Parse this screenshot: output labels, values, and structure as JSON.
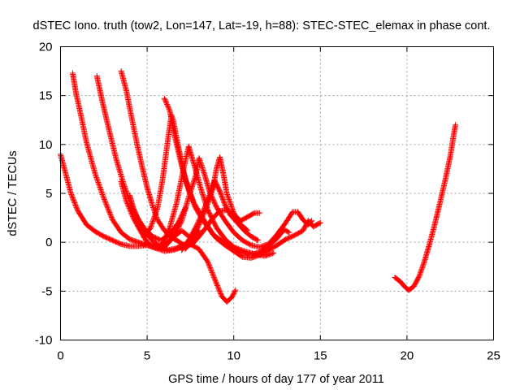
{
  "chart_data": {
    "type": "scatter",
    "title": "dSTEC Iono. truth (tow2, Lon=147, Lat=-19, h=88): STEC-STEC_elemax in phase cont.",
    "xlabel": "GPS time / hours of day 177 of year 2011",
    "ylabel": "dSTEC  / TECUs",
    "xlim": [
      0,
      25
    ],
    "ylim": [
      -10,
      20
    ],
    "xticks": [
      0,
      5,
      10,
      15,
      20,
      25
    ],
    "yticks": [
      -10,
      -5,
      0,
      5,
      10,
      15,
      20
    ],
    "grid": true,
    "marker": "+",
    "color": "#ff0000",
    "series": [
      {
        "values_xy": [
          [
            0.0,
            9.0
          ],
          [
            0.3,
            7.0
          ],
          [
            0.6,
            5.0
          ],
          [
            1.0,
            3.2
          ],
          [
            1.5,
            1.8
          ],
          [
            2.0,
            1.1
          ],
          [
            2.5,
            0.6
          ],
          [
            3.0,
            0.2
          ],
          [
            3.5,
            -0.2
          ],
          [
            4.0,
            -0.4
          ],
          [
            4.5,
            -0.4
          ],
          [
            5.0,
            -0.3
          ],
          [
            5.5,
            -0.6
          ],
          [
            6.0,
            -0.5
          ]
        ]
      },
      {
        "values_xy": [
          [
            0.7,
            17.3
          ],
          [
            0.9,
            15.2
          ],
          [
            1.2,
            12.8
          ],
          [
            1.5,
            10.2
          ],
          [
            2.0,
            7.0
          ],
          [
            2.5,
            4.5
          ],
          [
            3.0,
            2.3
          ],
          [
            3.5,
            1.0
          ],
          [
            4.0,
            0.3
          ],
          [
            4.5,
            0.0
          ],
          [
            5.0,
            -0.3
          ],
          [
            5.5,
            -0.5
          ],
          [
            6.0,
            -0.2
          ],
          [
            6.5,
            0.5
          ],
          [
            7.0,
            1.2
          ],
          [
            7.4,
            0.6
          ]
        ]
      },
      {
        "values_xy": [
          [
            2.1,
            17.0
          ],
          [
            2.4,
            14.5
          ],
          [
            2.8,
            11.5
          ],
          [
            3.2,
            8.6
          ],
          [
            3.6,
            6.2
          ],
          [
            4.0,
            4.2
          ],
          [
            4.4,
            2.6
          ],
          [
            4.8,
            1.5
          ],
          [
            5.3,
            0.6
          ],
          [
            5.8,
            0.2
          ],
          [
            6.3,
            0.8
          ],
          [
            6.8,
            2.0
          ],
          [
            7.2,
            3.5
          ]
        ]
      },
      {
        "values_xy": [
          [
            3.5,
            17.5
          ],
          [
            3.8,
            15.5
          ],
          [
            4.1,
            12.8
          ],
          [
            4.4,
            10.2
          ],
          [
            4.7,
            7.8
          ],
          [
            5.0,
            5.6
          ],
          [
            5.3,
            3.8
          ],
          [
            5.6,
            2.3
          ],
          [
            6.0,
            1.2
          ],
          [
            6.4,
            0.5
          ],
          [
            6.8,
            0.1
          ],
          [
            7.2,
            -0.4
          ],
          [
            7.6,
            -0.2
          ],
          [
            8.0,
            0.6
          ],
          [
            8.4,
            1.5
          ],
          [
            8.8,
            2.5
          ],
          [
            9.2,
            3.2
          ],
          [
            9.6,
            3.3
          ],
          [
            10.0,
            2.8
          ],
          [
            10.4,
            2.2
          ],
          [
            10.8,
            2.6
          ],
          [
            11.2,
            3.0
          ],
          [
            11.5,
            3.0
          ]
        ]
      },
      {
        "values_xy": [
          [
            4.0,
            4.8
          ],
          [
            4.2,
            3.5
          ],
          [
            4.5,
            2.2
          ],
          [
            4.9,
            1.0
          ],
          [
            5.3,
            0.2
          ],
          [
            5.7,
            -0.4
          ],
          [
            6.2,
            -0.8
          ],
          [
            6.7,
            -0.6
          ],
          [
            7.2,
            -0.2
          ],
          [
            7.6,
            0.4
          ],
          [
            8.0,
            1.2
          ]
        ]
      },
      {
        "values_xy": [
          [
            3.5,
            6.2
          ],
          [
            3.8,
            4.2
          ],
          [
            4.2,
            2.5
          ],
          [
            4.6,
            1.2
          ],
          [
            5.0,
            0.0
          ],
          [
            5.5,
            -0.6
          ],
          [
            6.0,
            -0.9
          ],
          [
            6.5,
            -0.8
          ],
          [
            7.0,
            -0.5
          ],
          [
            7.5,
            -0.2
          ],
          [
            8.0,
            -0.7
          ],
          [
            8.5,
            -2.0
          ],
          [
            9.0,
            -4.2
          ],
          [
            9.3,
            -5.5
          ],
          [
            9.6,
            -6.1
          ],
          [
            9.9,
            -5.6
          ],
          [
            10.1,
            -4.9
          ]
        ]
      },
      {
        "values_xy": [
          [
            4.8,
            0.5
          ],
          [
            5.2,
            1.5
          ],
          [
            5.6,
            3.5
          ],
          [
            5.9,
            6.5
          ],
          [
            6.2,
            10.5
          ],
          [
            6.4,
            13.0
          ],
          [
            6.5,
            12.5
          ],
          [
            6.8,
            9.8
          ],
          [
            7.2,
            6.5
          ],
          [
            7.7,
            4.0
          ],
          [
            8.2,
            2.5
          ],
          [
            8.8,
            0.8
          ],
          [
            9.4,
            0.0
          ],
          [
            10.0,
            -0.5
          ],
          [
            10.6,
            -0.9
          ],
          [
            11.2,
            -1.2
          ],
          [
            11.8,
            -1.4
          ],
          [
            12.3,
            -1.1
          ]
        ]
      },
      {
        "values_xy": [
          [
            6.0,
            14.7
          ],
          [
            6.3,
            13.5
          ],
          [
            6.6,
            10.8
          ],
          [
            7.0,
            7.8
          ],
          [
            7.4,
            5.3
          ],
          [
            7.8,
            3.5
          ],
          [
            8.2,
            2.3
          ],
          [
            8.6,
            1.3
          ],
          [
            9.0,
            0.4
          ],
          [
            9.5,
            -0.3
          ],
          [
            10.0,
            -0.9
          ],
          [
            10.5,
            -1.5
          ],
          [
            11.0,
            -1.6
          ],
          [
            11.5,
            -1.3
          ],
          [
            12.0,
            -0.8
          ],
          [
            12.5,
            -0.3
          ],
          [
            13.0,
            0.3
          ],
          [
            13.5,
            0.7
          ],
          [
            14.0,
            1.2
          ],
          [
            14.3,
            2.2
          ],
          [
            14.6,
            1.6
          ],
          [
            15.0,
            2.0
          ]
        ]
      },
      {
        "values_xy": [
          [
            5.5,
            -0.5
          ],
          [
            5.9,
            -0.2
          ],
          [
            6.3,
            1.5
          ],
          [
            6.7,
            4.0
          ],
          [
            7.1,
            7.5
          ],
          [
            7.4,
            9.8
          ],
          [
            7.7,
            8.0
          ],
          [
            8.1,
            5.5
          ],
          [
            8.5,
            3.3
          ],
          [
            9.0,
            1.5
          ],
          [
            9.5,
            0.3
          ],
          [
            10.0,
            -0.5
          ],
          [
            10.5,
            -1.0
          ],
          [
            11.0,
            -1.3
          ],
          [
            11.5,
            -1.0
          ],
          [
            12.0,
            -0.4
          ],
          [
            12.5,
            0.4
          ],
          [
            12.9,
            1.3
          ],
          [
            13.2,
            1.0
          ]
        ]
      },
      {
        "values_xy": [
          [
            6.0,
            -0.5
          ],
          [
            6.5,
            0.5
          ],
          [
            7.0,
            2.2
          ],
          [
            7.4,
            4.6
          ],
          [
            7.8,
            6.8
          ],
          [
            8.0,
            8.6
          ],
          [
            8.3,
            7.0
          ],
          [
            8.6,
            5.2
          ],
          [
            9.0,
            3.6
          ],
          [
            9.5,
            2.2
          ],
          [
            10.0,
            1.0
          ],
          [
            10.5,
            0.2
          ],
          [
            11.0,
            -0.3
          ],
          [
            11.5,
            -0.5
          ],
          [
            12.0,
            -0.2
          ],
          [
            12.5,
            0.8
          ],
          [
            13.0,
            2.0
          ],
          [
            13.4,
            3.1
          ],
          [
            13.7,
            3.1
          ],
          [
            14.0,
            2.3
          ],
          [
            14.3,
            1.8
          ],
          [
            14.5,
            2.2
          ]
        ]
      },
      {
        "values_xy": [
          [
            7.0,
            -0.8
          ],
          [
            7.4,
            0.2
          ],
          [
            7.8,
            1.5
          ],
          [
            8.2,
            3.0
          ],
          [
            8.6,
            4.8
          ],
          [
            8.9,
            6.3
          ],
          [
            9.2,
            5.2
          ],
          [
            9.5,
            3.8
          ],
          [
            9.8,
            2.8
          ],
          [
            10.2,
            2.0
          ],
          [
            10.6,
            1.2
          ],
          [
            11.0,
            0.6
          ],
          [
            11.4,
            0.2
          ]
        ]
      },
      {
        "values_xy": [
          [
            7.2,
            -0.7
          ],
          [
            7.6,
            0.3
          ],
          [
            8.0,
            1.8
          ],
          [
            8.4,
            3.5
          ],
          [
            8.8,
            5.5
          ],
          [
            9.0,
            7.5
          ],
          [
            9.2,
            8.7
          ],
          [
            9.4,
            7.0
          ],
          [
            9.6,
            5.0
          ],
          [
            10.0,
            3.0
          ],
          [
            10.4,
            1.8
          ],
          [
            10.8,
            1.2
          ]
        ]
      },
      {
        "values_xy": [
          [
            19.3,
            -3.6
          ],
          [
            19.6,
            -4.0
          ],
          [
            19.9,
            -4.6
          ],
          [
            20.1,
            -4.9
          ],
          [
            20.4,
            -4.5
          ],
          [
            20.7,
            -3.5
          ],
          [
            21.0,
            -2.0
          ],
          [
            21.3,
            -0.2
          ],
          [
            21.6,
            1.8
          ],
          [
            21.9,
            4.0
          ],
          [
            22.2,
            6.3
          ],
          [
            22.5,
            8.8
          ],
          [
            22.7,
            11.0
          ],
          [
            22.8,
            12.0
          ]
        ]
      }
    ]
  }
}
